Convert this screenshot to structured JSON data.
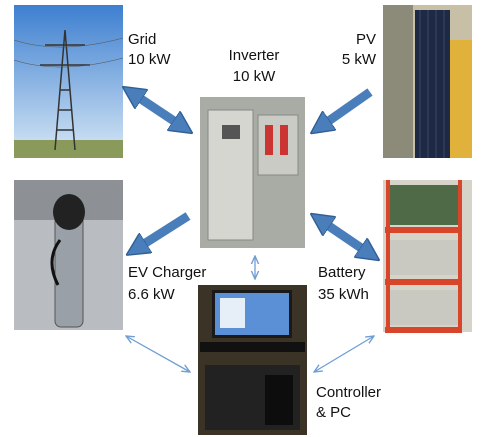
{
  "nodes": [
    {
      "label": "Grid",
      "rating": "10 kW"
    },
    {
      "label": "PV",
      "rating": "5 kW"
    },
    {
      "label": "Inverter",
      "rating": "10 kW"
    },
    {
      "label": "EV Charger",
      "rating": "6.6 kW"
    },
    {
      "label": "Battery",
      "rating": "35 kWh"
    },
    {
      "label": "Controller",
      "rating": "& PC"
    }
  ]
}
